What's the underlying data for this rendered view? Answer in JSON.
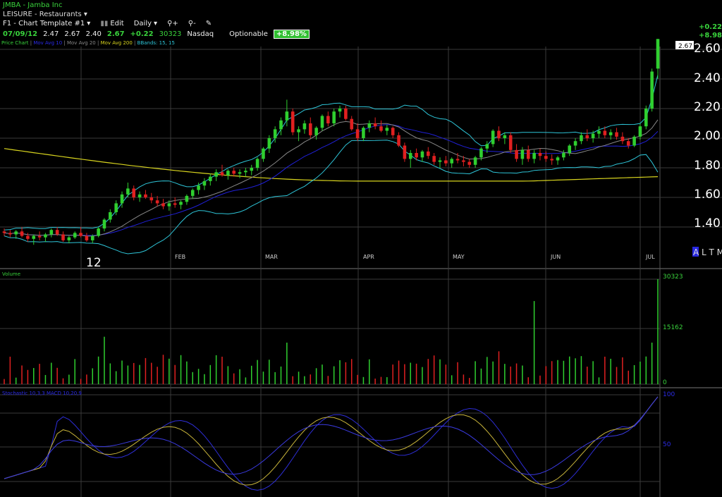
{
  "header": {
    "symbol_line": "JMBA - Jamba Inc",
    "sector_line": "LEISURE - Restaurants",
    "template_label": "F1 - Chart Template #1",
    "edit_label": "Edit",
    "period_label": "Daily",
    "quote": {
      "date": "07/09/12",
      "open": "2.47",
      "high": "2.67",
      "low": "2.40",
      "close": "2.67",
      "change": "+0.22",
      "volume": "30323",
      "exchange": "Nasdaq",
      "optionable": "Optionable",
      "pct_change": "+8.98%"
    },
    "right_change": "+0.22",
    "right_pct": "+8.98"
  },
  "legend": {
    "price_chart": "Price Chart",
    "ma10": "Mov Avg 10",
    "ma20": "Mov Avg 20",
    "ma200": "Mov Avg 200",
    "bbands": "BBands: 15, 15"
  },
  "price_axis": {
    "labels": [
      "2.60",
      "2.40",
      "2.20",
      "2.00",
      "1.80",
      "1.60",
      "1.40"
    ],
    "last_price_tag": "2.67"
  },
  "months": [
    "FEB",
    "MAR",
    "APR",
    "MAY",
    "JUN",
    "JUL"
  ],
  "year_label": "12",
  "bottom_right_tag": "A L T M",
  "volume_panel": {
    "title": "Volume",
    "labels": [
      "30323",
      "15162",
      "0"
    ]
  },
  "stoch_panel": {
    "title": "Stochastic 10,3,3 MACD 10,20,9",
    "labels": [
      "100",
      "50"
    ]
  },
  "colors": {
    "up": "#2fcf2f",
    "down": "#e02020",
    "bband": "#2ec5d8",
    "ma200": "#d8d41e",
    "ma_blue": "#2020d8",
    "ma_gray": "#888888",
    "grid": "#3a3a3a"
  },
  "chart_data": {
    "type": "candlestick",
    "ylim": [
      1.25,
      2.7
    ],
    "candles": [
      [
        1.37,
        1.39,
        1.34,
        1.36
      ],
      [
        1.36,
        1.38,
        1.33,
        1.35
      ],
      [
        1.35,
        1.38,
        1.32,
        1.37
      ],
      [
        1.37,
        1.4,
        1.33,
        1.34
      ],
      [
        1.34,
        1.36,
        1.3,
        1.32
      ],
      [
        1.32,
        1.35,
        1.28,
        1.34
      ],
      [
        1.34,
        1.37,
        1.31,
        1.33
      ],
      [
        1.33,
        1.36,
        1.3,
        1.35
      ],
      [
        1.35,
        1.39,
        1.33,
        1.38
      ],
      [
        1.38,
        1.4,
        1.34,
        1.35
      ],
      [
        1.35,
        1.37,
        1.3,
        1.31
      ],
      [
        1.31,
        1.34,
        1.29,
        1.33
      ],
      [
        1.33,
        1.37,
        1.32,
        1.36
      ],
      [
        1.36,
        1.4,
        1.33,
        1.34
      ],
      [
        1.34,
        1.36,
        1.3,
        1.31
      ],
      [
        1.31,
        1.35,
        1.29,
        1.34
      ],
      [
        1.34,
        1.4,
        1.33,
        1.39
      ],
      [
        1.39,
        1.46,
        1.37,
        1.45
      ],
      [
        1.45,
        1.52,
        1.43,
        1.5
      ],
      [
        1.5,
        1.58,
        1.48,
        1.56
      ],
      [
        1.56,
        1.64,
        1.53,
        1.62
      ],
      [
        1.62,
        1.7,
        1.6,
        1.66
      ],
      [
        1.66,
        1.68,
        1.58,
        1.6
      ],
      [
        1.6,
        1.64,
        1.57,
        1.62
      ],
      [
        1.62,
        1.65,
        1.59,
        1.6
      ],
      [
        1.6,
        1.63,
        1.56,
        1.58
      ],
      [
        1.58,
        1.61,
        1.54,
        1.56
      ],
      [
        1.56,
        1.59,
        1.52,
        1.54
      ],
      [
        1.54,
        1.58,
        1.51,
        1.56
      ],
      [
        1.56,
        1.6,
        1.53,
        1.55
      ],
      [
        1.55,
        1.58,
        1.52,
        1.57
      ],
      [
        1.57,
        1.62,
        1.55,
        1.61
      ],
      [
        1.61,
        1.66,
        1.59,
        1.65
      ],
      [
        1.65,
        1.7,
        1.62,
        1.68
      ],
      [
        1.68,
        1.73,
        1.65,
        1.71
      ],
      [
        1.71,
        1.76,
        1.68,
        1.74
      ],
      [
        1.74,
        1.79,
        1.71,
        1.77
      ],
      [
        1.77,
        1.82,
        1.74,
        1.75
      ],
      [
        1.75,
        1.79,
        1.72,
        1.78
      ],
      [
        1.78,
        1.8,
        1.74,
        1.76
      ],
      [
        1.76,
        1.79,
        1.73,
        1.77
      ],
      [
        1.77,
        1.8,
        1.74,
        1.78
      ],
      [
        1.78,
        1.82,
        1.75,
        1.8
      ],
      [
        1.8,
        1.87,
        1.78,
        1.86
      ],
      [
        1.86,
        1.94,
        1.84,
        1.93
      ],
      [
        1.93,
        2.02,
        1.9,
        2.0
      ],
      [
        2.0,
        2.08,
        1.97,
        2.06
      ],
      [
        2.06,
        2.14,
        2.02,
        2.12
      ],
      [
        2.12,
        2.26,
        2.08,
        2.18
      ],
      [
        2.18,
        2.2,
        2.02,
        2.04
      ],
      [
        2.04,
        2.08,
        1.98,
        2.06
      ],
      [
        2.06,
        2.12,
        2.03,
        2.1
      ],
      [
        2.1,
        2.14,
        2.0,
        2.02
      ],
      [
        2.02,
        2.08,
        1.99,
        2.07
      ],
      [
        2.07,
        2.16,
        2.05,
        2.15
      ],
      [
        2.15,
        2.18,
        2.08,
        2.1
      ],
      [
        2.1,
        2.2,
        2.08,
        2.18
      ],
      [
        2.18,
        2.22,
        2.14,
        2.2
      ],
      [
        2.2,
        2.22,
        2.12,
        2.13
      ],
      [
        2.13,
        2.15,
        2.05,
        2.06
      ],
      [
        2.06,
        2.1,
        1.98,
        2.0
      ],
      [
        2.0,
        2.08,
        1.98,
        2.07
      ],
      [
        2.07,
        2.12,
        2.04,
        2.1
      ],
      [
        2.1,
        2.14,
        2.06,
        2.08
      ],
      [
        2.08,
        2.12,
        2.04,
        2.05
      ],
      [
        2.05,
        2.09,
        2.02,
        2.07
      ],
      [
        2.07,
        2.08,
        2.0,
        2.02
      ],
      [
        2.02,
        2.04,
        1.94,
        1.95
      ],
      [
        1.95,
        1.97,
        1.84,
        1.86
      ],
      [
        1.86,
        1.92,
        1.8,
        1.9
      ],
      [
        1.9,
        1.93,
        1.85,
        1.87
      ],
      [
        1.87,
        1.92,
        1.84,
        1.91
      ],
      [
        1.91,
        1.94,
        1.86,
        1.88
      ],
      [
        1.88,
        1.9,
        1.82,
        1.84
      ],
      [
        1.84,
        1.87,
        1.8,
        1.85
      ],
      [
        1.85,
        1.88,
        1.81,
        1.83
      ],
      [
        1.83,
        1.87,
        1.8,
        1.86
      ],
      [
        1.86,
        1.9,
        1.83,
        1.85
      ],
      [
        1.85,
        1.88,
        1.81,
        1.84
      ],
      [
        1.84,
        1.86,
        1.8,
        1.82
      ],
      [
        1.82,
        1.88,
        1.8,
        1.87
      ],
      [
        1.87,
        1.94,
        1.85,
        1.93
      ],
      [
        1.93,
        1.98,
        1.9,
        1.96
      ],
      [
        1.96,
        2.06,
        1.94,
        2.05
      ],
      [
        2.05,
        2.08,
        1.98,
        2.0
      ],
      [
        2.0,
        2.04,
        1.96,
        2.02
      ],
      [
        2.02,
        2.04,
        1.9,
        1.92
      ],
      [
        1.92,
        1.96,
        1.84,
        1.86
      ],
      [
        1.86,
        1.94,
        1.82,
        1.92
      ],
      [
        1.92,
        1.95,
        1.84,
        1.86
      ],
      [
        1.86,
        1.92,
        1.83,
        1.9
      ],
      [
        1.9,
        1.93,
        1.85,
        1.88
      ],
      [
        1.88,
        1.91,
        1.84,
        1.86
      ],
      [
        1.86,
        1.89,
        1.82,
        1.85
      ],
      [
        1.85,
        1.88,
        1.82,
        1.87
      ],
      [
        1.87,
        1.92,
        1.85,
        1.9
      ],
      [
        1.9,
        1.96,
        1.88,
        1.95
      ],
      [
        1.95,
        2.0,
        1.92,
        1.98
      ],
      [
        1.98,
        2.04,
        1.96,
        2.02
      ],
      [
        2.02,
        2.06,
        1.98,
        2.0
      ],
      [
        2.0,
        2.05,
        1.97,
        2.03
      ],
      [
        2.03,
        2.08,
        2.0,
        2.05
      ],
      [
        2.05,
        2.08,
        2.0,
        2.02
      ],
      [
        2.02,
        2.06,
        1.99,
        2.04
      ],
      [
        2.04,
        2.07,
        1.99,
        2.01
      ],
      [
        2.01,
        2.04,
        1.96,
        1.98
      ],
      [
        1.98,
        2.0,
        1.93,
        1.95
      ],
      [
        1.95,
        2.02,
        1.94,
        2.01
      ],
      [
        2.01,
        2.1,
        1.99,
        2.08
      ],
      [
        2.08,
        2.22,
        2.06,
        2.2
      ],
      [
        2.2,
        2.47,
        2.18,
        2.45
      ],
      [
        2.47,
        2.67,
        2.4,
        2.67
      ]
    ],
    "volume_max": 30323
  }
}
